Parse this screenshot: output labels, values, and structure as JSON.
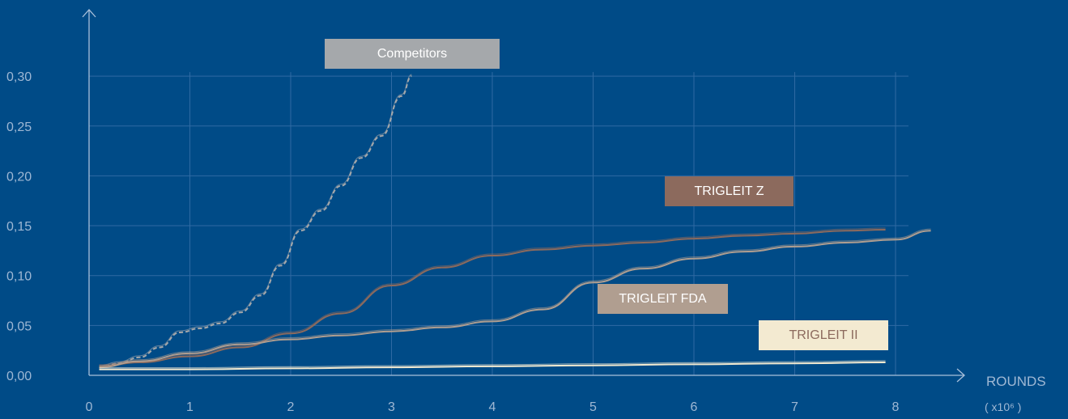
{
  "chart_data": {
    "type": "line",
    "xlabel": "ROUNDS",
    "xlabel_unit": "( x10⁶ )",
    "ylabel": "",
    "xlim": [
      0,
      8
    ],
    "ylim": [
      0,
      0.3
    ],
    "grid": true,
    "x_ticks": [
      0,
      1,
      2,
      3,
      4,
      5,
      6,
      7,
      8
    ],
    "x_tick_labels": [
      "0",
      "1",
      "2",
      "3",
      "4",
      "5",
      "6",
      "7",
      "8"
    ],
    "y_ticks": [
      0,
      0.05,
      0.1,
      0.15,
      0.2,
      0.25,
      0.3
    ],
    "y_tick_labels": [
      "0,00",
      "0,05",
      "0,10",
      "0,15",
      "0,20",
      "0,25",
      "0,30"
    ],
    "series": [
      {
        "name": "Competitors",
        "color": "#a5a8ab",
        "dashed": true,
        "x": [
          0.1,
          0.3,
          0.5,
          0.7,
          0.9,
          1.1,
          1.3,
          1.5,
          1.7,
          1.9,
          2.1,
          2.3,
          2.5,
          2.7,
          2.9,
          3.1,
          3.2
        ],
        "y": [
          0.008,
          0.012,
          0.018,
          0.028,
          0.043,
          0.047,
          0.052,
          0.063,
          0.08,
          0.11,
          0.145,
          0.165,
          0.19,
          0.218,
          0.24,
          0.28,
          0.3
        ]
      },
      {
        "name": "TRIGLEIT Z",
        "color": "#8c6a5d",
        "dashed": false,
        "x": [
          0.1,
          0.5,
          1.0,
          1.5,
          2.0,
          2.5,
          3.0,
          3.5,
          4.0,
          4.5,
          5.0,
          5.5,
          6.0,
          6.5,
          7.0,
          7.5,
          7.9
        ],
        "y": [
          0.009,
          0.013,
          0.019,
          0.028,
          0.042,
          0.062,
          0.09,
          0.108,
          0.12,
          0.126,
          0.13,
          0.133,
          0.137,
          0.14,
          0.142,
          0.145,
          0.146
        ]
      },
      {
        "name": "TRIGLEIT FDA",
        "color": "#b09e90",
        "dashed": false,
        "x": [
          0.1,
          0.5,
          1.0,
          1.5,
          2.0,
          2.5,
          3.0,
          3.5,
          4.0,
          4.5,
          5.0,
          5.5,
          6.0,
          6.5,
          7.0,
          7.5,
          8.0,
          8.35
        ],
        "y": [
          0.008,
          0.014,
          0.022,
          0.031,
          0.036,
          0.04,
          0.044,
          0.048,
          0.054,
          0.066,
          0.093,
          0.107,
          0.117,
          0.124,
          0.129,
          0.133,
          0.136,
          0.145
        ]
      },
      {
        "name": "TRIGLEIT II",
        "color": "#f3ead1",
        "dashed": false,
        "x": [
          0.1,
          1.0,
          2.0,
          3.0,
          4.0,
          5.0,
          6.0,
          7.0,
          7.9
        ],
        "y": [
          0.006,
          0.006,
          0.007,
          0.008,
          0.009,
          0.01,
          0.011,
          0.012,
          0.013
        ]
      }
    ]
  },
  "labels": {
    "competitors": {
      "text": "Competitors",
      "bg": "#a5a8ab",
      "fg": "#ffffff"
    },
    "trigleit_z": {
      "text": "TRIGLEIT Z",
      "bg": "#8c6a5d",
      "fg": "#ffffff"
    },
    "trigleit_fda": {
      "text": "TRIGLEIT FDA",
      "bg": "#b09e90",
      "fg": "#ffffff"
    },
    "trigleit_ii": {
      "text": "TRIGLEIT II",
      "bg": "#f3ead1",
      "fg": "#8c6a5d"
    }
  }
}
